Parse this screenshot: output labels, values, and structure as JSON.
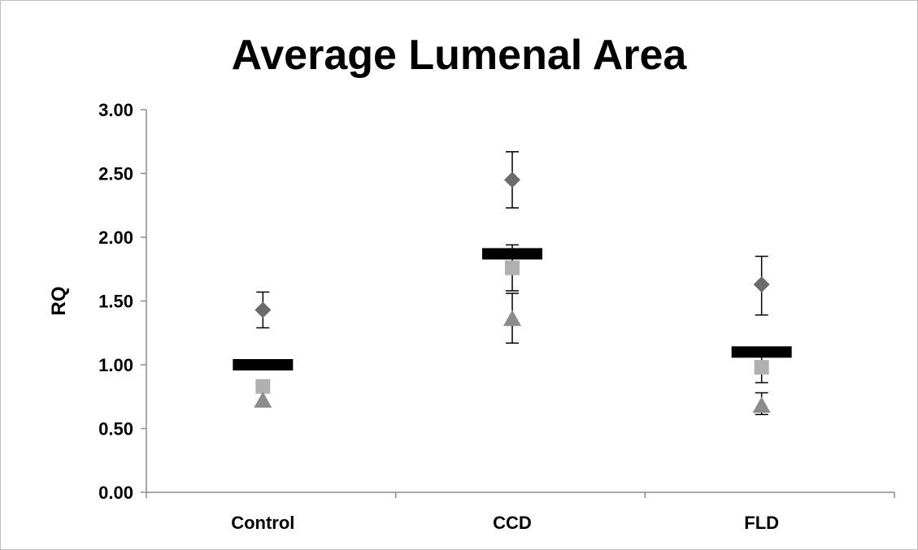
{
  "chart_data": {
    "type": "scatter",
    "title": "Average Lumenal Area",
    "ylabel": "RQ",
    "xlabel": "",
    "categories": [
      "Control",
      "CCD",
      "FLD"
    ],
    "ylim": [
      0,
      3
    ],
    "yticks": [
      "0.00",
      "0.50",
      "1.00",
      "1.50",
      "2.00",
      "2.50",
      "3.00"
    ],
    "ytick_values": [
      0,
      0.5,
      1.0,
      1.5,
      2.0,
      2.5,
      3.0
    ],
    "grid": false,
    "legend": false,
    "series": [
      {
        "marker": "diamond",
        "color": "#6b6b6b",
        "values": [
          1.43,
          2.45,
          1.63
        ],
        "err_low": [
          1.29,
          2.23,
          1.39
        ],
        "err_high": [
          1.57,
          2.67,
          1.85
        ]
      },
      {
        "marker": "square",
        "color": "#b0b0b0",
        "values": [
          0.83,
          1.76,
          0.98
        ],
        "err_low": [
          0.82,
          1.58,
          0.86
        ],
        "err_high": [
          0.84,
          1.94,
          1.08
        ]
      },
      {
        "marker": "triangle",
        "color": "#8c8c8c",
        "values": [
          0.72,
          1.36,
          0.68
        ],
        "err_low": [
          0.71,
          1.17,
          0.61
        ],
        "err_high": [
          0.73,
          1.56,
          0.78
        ]
      }
    ],
    "means": {
      "color": "#000000",
      "values": [
        1.0,
        1.87,
        1.1
      ]
    }
  }
}
